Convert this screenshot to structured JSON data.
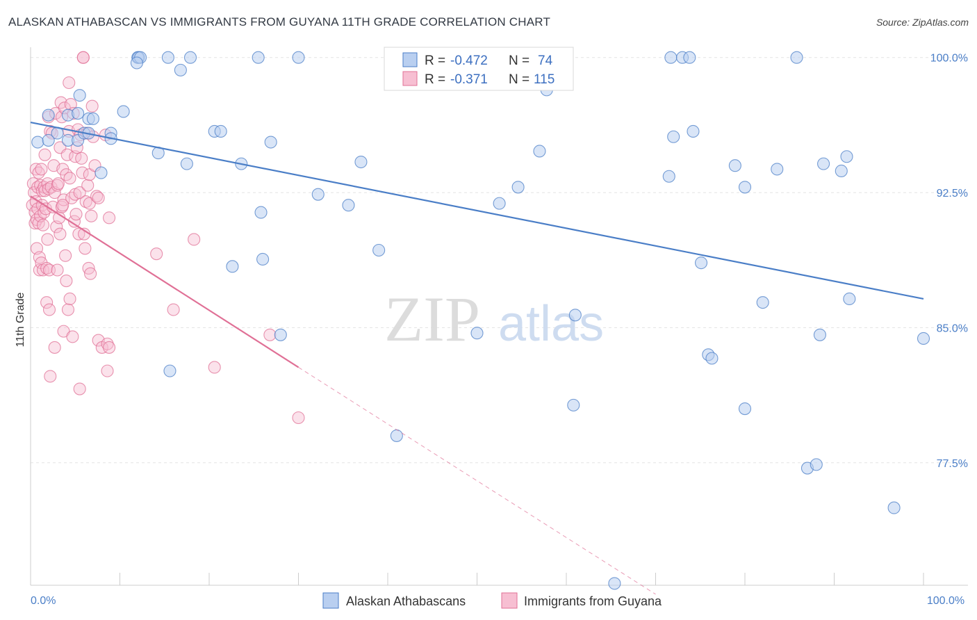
{
  "header": {
    "title": "ALASKAN ATHABASCAN VS IMMIGRANTS FROM GUYANA 11TH GRADE CORRELATION CHART",
    "source": "Source: ZipAtlas.com"
  },
  "watermark": {
    "zip": "ZIP",
    "atlas": "atlas"
  },
  "legend": {
    "r_label": "R =",
    "n_label": "N =",
    "rows": [
      {
        "r": "-0.472",
        "n": "74",
        "color": "#4a7ec7"
      },
      {
        "r": "-0.371",
        "n": "115",
        "color": "#e07096"
      }
    ]
  },
  "chart_data": {
    "type": "scatter",
    "title": "ALASKAN ATHABASCAN VS IMMIGRANTS FROM GUYANA 11TH GRADE CORRELATION CHART",
    "xlabel": "",
    "ylabel": "11th Grade",
    "xlim": [
      0,
      100
    ],
    "ylim": [
      70.7,
      100.8
    ],
    "x_ticks": [
      {
        "value": 0,
        "label": "0.0%"
      },
      {
        "value": 100,
        "label": "100.0%"
      }
    ],
    "y_ticks": [
      {
        "value": 100.0,
        "label": "100.0%"
      },
      {
        "value": 92.5,
        "label": "92.5%"
      },
      {
        "value": 85.0,
        "label": "85.0%"
      },
      {
        "value": 77.5,
        "label": "77.5%"
      }
    ],
    "grid": true,
    "legend_position": "bottom",
    "series": [
      {
        "name": "Alaskan Athabascans",
        "color": "#4a7ec7",
        "fill": "#b9cff0",
        "trend": {
          "x": [
            0,
            100
          ],
          "y": [
            96.4,
            86.6
          ],
          "dashed_from": null
        },
        "points": [
          [
            0.8,
            95.3
          ],
          [
            2.0,
            96.8
          ],
          [
            2.0,
            95.4
          ],
          [
            3.0,
            95.8
          ],
          [
            4.2,
            96.8
          ],
          [
            4.2,
            95.4
          ],
          [
            5.3,
            96.9
          ],
          [
            5.3,
            95.4
          ],
          [
            5.5,
            97.9
          ],
          [
            6.0,
            95.8
          ],
          [
            6.5,
            96.6
          ],
          [
            6.5,
            95.8
          ],
          [
            7.0,
            96.6
          ],
          [
            7.9,
            93.6
          ],
          [
            9.0,
            95.8
          ],
          [
            9.0,
            95.5
          ],
          [
            10.4,
            97.0
          ],
          [
            12.0,
            100.0
          ],
          [
            12.1,
            100.0
          ],
          [
            12.3,
            100.0
          ],
          [
            14.3,
            94.7
          ],
          [
            15.4,
            100.0
          ],
          [
            15.6,
            82.6
          ],
          [
            16.8,
            99.3
          ],
          [
            17.5,
            94.1
          ],
          [
            17.9,
            100.0
          ],
          [
            20.6,
            95.9
          ],
          [
            21.3,
            95.9
          ],
          [
            22.6,
            88.4
          ],
          [
            23.6,
            94.1
          ],
          [
            25.5,
            100.0
          ],
          [
            25.8,
            91.4
          ],
          [
            26.0,
            88.8
          ],
          [
            26.9,
            95.3
          ],
          [
            28.0,
            84.6
          ],
          [
            30.0,
            100.0
          ],
          [
            32.2,
            92.4
          ],
          [
            35.6,
            91.8
          ],
          [
            37.0,
            94.2
          ],
          [
            39.0,
            89.3
          ],
          [
            41.0,
            79.0
          ],
          [
            11.9,
            99.7
          ],
          [
            50.0,
            84.7
          ],
          [
            52.5,
            91.9
          ],
          [
            54.6,
            92.8
          ],
          [
            57.0,
            94.8
          ],
          [
            57.8,
            98.2
          ],
          [
            60.8,
            80.7
          ],
          [
            61.0,
            85.7
          ],
          [
            65.4,
            70.8
          ],
          [
            71.7,
            100.0
          ],
          [
            72.0,
            95.6
          ],
          [
            71.5,
            93.4
          ],
          [
            73.0,
            100.0
          ],
          [
            73.8,
            100.0
          ],
          [
            74.2,
            95.9
          ],
          [
            75.1,
            88.6
          ],
          [
            75.9,
            83.5
          ],
          [
            76.3,
            83.3
          ],
          [
            78.9,
            94.0
          ],
          [
            80.0,
            80.5
          ],
          [
            80.0,
            92.8
          ],
          [
            82.0,
            86.4
          ],
          [
            83.6,
            93.8
          ],
          [
            85.8,
            100.0
          ],
          [
            87.0,
            77.2
          ],
          [
            88.0,
            77.4
          ],
          [
            88.4,
            84.6
          ],
          [
            88.8,
            94.1
          ],
          [
            90.8,
            93.7
          ],
          [
            91.4,
            94.5
          ],
          [
            91.7,
            86.6
          ],
          [
            96.7,
            75.0
          ],
          [
            100.0,
            84.4
          ]
        ]
      },
      {
        "name": "Immigrants from Guyana",
        "color": "#e07096",
        "fill": "#f7bfd2",
        "trend": {
          "x": [
            0,
            30,
            70
          ],
          "y": [
            92.3,
            82.8,
            70.2
          ],
          "dashed_from": 30
        },
        "points": [
          [
            0.2,
            91.8
          ],
          [
            0.3,
            93.0
          ],
          [
            0.4,
            92.5
          ],
          [
            0.5,
            91.4
          ],
          [
            0.5,
            90.8
          ],
          [
            0.6,
            93.8
          ],
          [
            0.6,
            92.0
          ],
          [
            0.7,
            91.0
          ],
          [
            0.7,
            89.4
          ],
          [
            0.8,
            92.8
          ],
          [
            0.8,
            91.6
          ],
          [
            0.9,
            93.6
          ],
          [
            0.9,
            90.8
          ],
          [
            1.0,
            88.9
          ],
          [
            1.0,
            88.2
          ],
          [
            1.1,
            92.9
          ],
          [
            1.1,
            91.2
          ],
          [
            1.2,
            93.8
          ],
          [
            1.2,
            88.6
          ],
          [
            1.3,
            92.6
          ],
          [
            1.3,
            91.8
          ],
          [
            1.4,
            90.7
          ],
          [
            1.4,
            88.2
          ],
          [
            1.5,
            92.8
          ],
          [
            1.5,
            91.4
          ],
          [
            1.6,
            94.6
          ],
          [
            1.6,
            92.6
          ],
          [
            1.7,
            91.6
          ],
          [
            1.8,
            88.3
          ],
          [
            1.8,
            86.4
          ],
          [
            1.9,
            93.0
          ],
          [
            1.9,
            89.9
          ],
          [
            2.0,
            96.7
          ],
          [
            2.0,
            92.7
          ],
          [
            2.1,
            88.2
          ],
          [
            2.1,
            86.0
          ],
          [
            2.2,
            95.9
          ],
          [
            2.2,
            82.3
          ],
          [
            2.3,
            92.8
          ],
          [
            2.4,
            95.8
          ],
          [
            2.5,
            91.7
          ],
          [
            2.6,
            94.0
          ],
          [
            2.7,
            92.5
          ],
          [
            2.7,
            83.9
          ],
          [
            2.8,
            96.9
          ],
          [
            2.9,
            90.6
          ],
          [
            3.0,
            92.9
          ],
          [
            3.0,
            88.2
          ],
          [
            3.1,
            93.0
          ],
          [
            3.2,
            91.1
          ],
          [
            3.3,
            95.0
          ],
          [
            3.3,
            90.2
          ],
          [
            3.4,
            97.5
          ],
          [
            3.5,
            96.7
          ],
          [
            3.5,
            91.7
          ],
          [
            3.6,
            93.8
          ],
          [
            3.7,
            92.1
          ],
          [
            3.7,
            84.8
          ],
          [
            3.8,
            97.2
          ],
          [
            3.9,
            89.0
          ],
          [
            4.0,
            93.5
          ],
          [
            4.0,
            87.6
          ],
          [
            4.1,
            94.6
          ],
          [
            4.2,
            86.0
          ],
          [
            4.3,
            98.6
          ],
          [
            4.3,
            95.9
          ],
          [
            4.4,
            93.3
          ],
          [
            4.4,
            86.6
          ],
          [
            4.5,
            97.4
          ],
          [
            4.6,
            92.2
          ],
          [
            4.7,
            84.5
          ],
          [
            4.8,
            96.9
          ],
          [
            4.9,
            90.9
          ],
          [
            5.0,
            94.5
          ],
          [
            5.0,
            92.4
          ],
          [
            5.1,
            91.3
          ],
          [
            5.2,
            95.0
          ],
          [
            5.3,
            96.0
          ],
          [
            5.4,
            90.2
          ],
          [
            5.5,
            81.6
          ],
          [
            5.5,
            92.5
          ],
          [
            5.6,
            95.7
          ],
          [
            5.7,
            94.4
          ],
          [
            5.8,
            93.6
          ],
          [
            5.9,
            100.0
          ],
          [
            6.0,
            90.2
          ],
          [
            6.1,
            89.4
          ],
          [
            6.2,
            92.0
          ],
          [
            6.3,
            95.8
          ],
          [
            6.4,
            92.9
          ],
          [
            6.5,
            88.3
          ],
          [
            6.6,
            91.9
          ],
          [
            6.6,
            93.5
          ],
          [
            6.7,
            88.0
          ],
          [
            6.8,
            91.2
          ],
          [
            6.9,
            97.3
          ],
          [
            7.0,
            95.6
          ],
          [
            7.2,
            94.0
          ],
          [
            7.4,
            92.3
          ],
          [
            7.6,
            84.3
          ],
          [
            7.6,
            92.2
          ],
          [
            8.0,
            83.9
          ],
          [
            8.4,
            95.7
          ],
          [
            8.6,
            82.6
          ],
          [
            8.6,
            84.1
          ],
          [
            8.8,
            83.9
          ],
          [
            8.8,
            91.1
          ],
          [
            5.9,
            100.0
          ],
          [
            14.1,
            89.1
          ],
          [
            16.0,
            86.0
          ],
          [
            18.3,
            89.9
          ],
          [
            20.6,
            82.8
          ],
          [
            26.8,
            84.6
          ],
          [
            30.0,
            80.0
          ],
          [
            3.6,
            91.8
          ]
        ]
      }
    ]
  }
}
